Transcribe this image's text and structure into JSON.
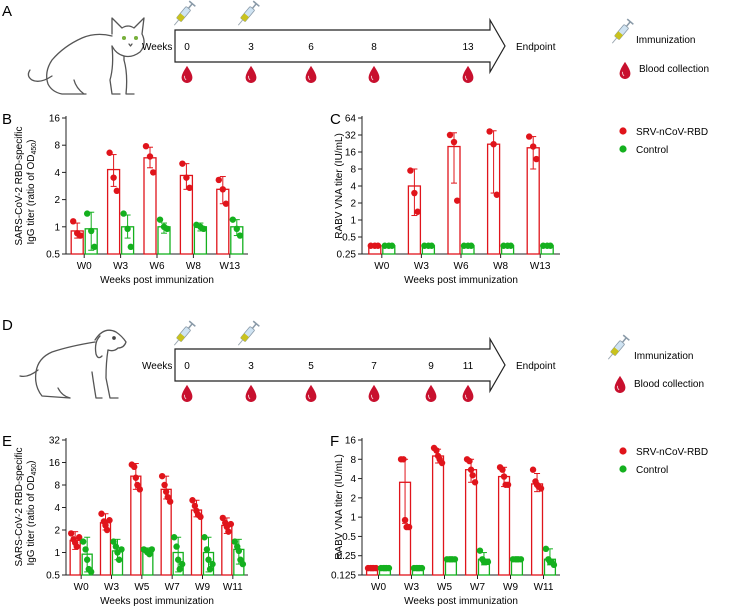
{
  "colors": {
    "red": "#e0141b",
    "green": "#14b01e",
    "blood": "#c8102e",
    "axis": "#222222"
  },
  "panel_a": {
    "letter": "A",
    "weeks_label": "Weeks",
    "ticks": [
      "0",
      "3",
      "6",
      "8",
      "13"
    ],
    "endpoint": "Endpoint",
    "immunization": "Immunization",
    "blood_collection": "Blood collection",
    "animal": "cat",
    "immunized_at": [
      "0",
      "3"
    ]
  },
  "panel_d": {
    "letter": "D",
    "weeks_label": "Weeks",
    "ticks": [
      "0",
      "3",
      "5",
      "7",
      "9",
      "11"
    ],
    "endpoint": "Endpoint",
    "immunization": "Immunization",
    "blood_collection": "Blood collection",
    "animal": "dog",
    "immunized_at": [
      "0",
      "3"
    ]
  },
  "legend": {
    "items": [
      "SRV-nCoV-RBD",
      "Control"
    ]
  },
  "chart_data": [
    {
      "id": "B",
      "letter": "B",
      "type": "bar",
      "scale": "log2",
      "categories": [
        "W0",
        "W3",
        "W6",
        "W8",
        "W13"
      ],
      "ylabel_line1": "SARS-CoV-2 RBD-specific",
      "ylabel_line2": "IgG titer (ratio of OD",
      "ylabel_sub": "450",
      "ylabel_end": ")",
      "xlabel": "Weeks post immunization",
      "ylim": [
        0.5,
        16
      ],
      "yticks": [
        0.5,
        1,
        2,
        4,
        8,
        16
      ],
      "ytick_labels": [
        "0.5",
        "1",
        "2",
        "4",
        "8",
        "16"
      ],
      "series": [
        {
          "name": "SRV-nCoV-RBD",
          "color": "red",
          "values": [
            0.9,
            4.3,
            5.8,
            3.7,
            2.6
          ],
          "err": [
            [
              0.75,
              1.1
            ],
            [
              2.8,
              6.3
            ],
            [
              4.5,
              7.6
            ],
            [
              2.6,
              5.0
            ],
            [
              1.8,
              3.6
            ]
          ],
          "points": [
            [
              1.15,
              0.85,
              0.8
            ],
            [
              6.6,
              3.5,
              2.5
            ],
            [
              7.8,
              6.0,
              4.0
            ],
            [
              5.0,
              3.5,
              2.7
            ],
            [
              3.3,
              2.6,
              1.8
            ]
          ]
        },
        {
          "name": "Control",
          "color": "green",
          "values": [
            0.95,
            1.0,
            1.0,
            1.0,
            1.0
          ],
          "err": [
            [
              0.55,
              1.45
            ],
            [
              0.75,
              1.35
            ],
            [
              0.85,
              1.1
            ],
            [
              0.9,
              1.1
            ],
            [
              0.8,
              1.2
            ]
          ],
          "points": [
            [
              1.4,
              0.9,
              0.6
            ],
            [
              1.4,
              0.95,
              0.6
            ],
            [
              1.2,
              1.0,
              0.95
            ],
            [
              1.05,
              1.0,
              0.95
            ],
            [
              1.2,
              0.95,
              0.8
            ]
          ]
        }
      ]
    },
    {
      "id": "C",
      "letter": "C",
      "type": "bar",
      "scale": "log2",
      "categories": [
        "W0",
        "W3",
        "W6",
        "W8",
        "W13"
      ],
      "ylabel_line1": "RABV VNA titer (IU/mL)",
      "xlabel": "Weeks post immunization",
      "ylim": [
        0.25,
        64
      ],
      "yticks": [
        0.25,
        0.5,
        1,
        2,
        4,
        8,
        16,
        32,
        64
      ],
      "ytick_labels": [
        "0.25",
        "0.5",
        "1",
        "2",
        "4",
        "8",
        "16",
        "32",
        "64"
      ],
      "series": [
        {
          "name": "SRV-nCoV-RBD",
          "color": "red",
          "values": [
            0.35,
            4.0,
            20,
            22,
            19
          ],
          "err": [
            [
              0.35,
              0.35
            ],
            [
              1.2,
              8.0
            ],
            [
              4.5,
              35
            ],
            [
              3.0,
              38
            ],
            [
              8.0,
              30
            ]
          ],
          "points": [
            [
              0.35,
              0.35,
              0.35
            ],
            [
              7.5,
              3.0,
              1.4
            ],
            [
              32,
              24,
              2.2
            ],
            [
              37,
              22,
              2.8
            ],
            [
              30,
              20,
              12
            ]
          ]
        },
        {
          "name": "Control",
          "color": "green",
          "values": [
            0.35,
            0.35,
            0.35,
            0.35,
            0.35
          ],
          "err": [
            [
              0.35,
              0.35
            ],
            [
              0.35,
              0.35
            ],
            [
              0.35,
              0.35
            ],
            [
              0.35,
              0.35
            ],
            [
              0.35,
              0.35
            ]
          ],
          "points": [
            [
              0.35,
              0.35,
              0.35
            ],
            [
              0.35,
              0.35,
              0.35
            ],
            [
              0.35,
              0.35,
              0.35
            ],
            [
              0.35,
              0.35,
              0.35
            ],
            [
              0.35,
              0.35,
              0.35
            ]
          ]
        }
      ]
    },
    {
      "id": "E",
      "letter": "E",
      "type": "bar",
      "scale": "log2",
      "categories": [
        "W0",
        "W3",
        "W5",
        "W7",
        "W9",
        "W11"
      ],
      "ylabel_line1": "SARS-CoV-2 RBD-specific",
      "ylabel_line2": "IgG titer (ratio of OD",
      "ylabel_sub": "450",
      "ylabel_end": ")",
      "xlabel": "Weeks post immunization",
      "ylim": [
        0.5,
        32
      ],
      "yticks": [
        0.5,
        1,
        2,
        4,
        8,
        16,
        32
      ],
      "ytick_labels": [
        "0.5",
        "1",
        "2",
        "4",
        "8",
        "16",
        "32"
      ],
      "series": [
        {
          "name": "SRV-nCoV-RBD",
          "color": "red",
          "values": [
            1.45,
            2.5,
            10.5,
            7.0,
            3.7,
            2.3
          ],
          "err": [
            [
              1.1,
              1.9
            ],
            [
              2.0,
              3.3
            ],
            [
              7.0,
              15.5
            ],
            [
              5.2,
              10.5
            ],
            [
              3.0,
              5.0
            ],
            [
              1.8,
              2.9
            ]
          ],
          "points": [
            [
              1.8,
              1.5,
              1.35,
              1.2,
              1.6
            ],
            [
              3.3,
              2.6,
              2.3,
              2.0,
              2.7
            ],
            [
              15,
              14,
              10,
              8,
              7
            ],
            [
              10.5,
              8,
              6.5,
              5.5,
              4.8
            ],
            [
              5,
              4.2,
              3.6,
              3.2,
              3.0
            ],
            [
              2.9,
              2.5,
              2.2,
              1.9,
              2.4
            ]
          ]
        },
        {
          "name": "Control",
          "color": "green",
          "values": [
            0.95,
            1.05,
            1.05,
            1.0,
            1.0,
            1.1
          ],
          "err": [
            [
              0.55,
              1.6
            ],
            [
              0.8,
              1.5
            ],
            [
              0.95,
              1.15
            ],
            [
              0.55,
              1.6
            ],
            [
              0.55,
              1.6
            ],
            [
              0.7,
              1.5
            ]
          ],
          "points": [
            [
              1.4,
              1.1,
              0.8,
              0.6,
              0.55
            ],
            [
              1.4,
              1.2,
              1.0,
              0.8,
              1.1
            ],
            [
              1.1,
              1.05,
              1.0,
              0.95,
              1.1
            ],
            [
              1.6,
              1.2,
              0.8,
              0.6,
              0.7
            ],
            [
              1.6,
              1.1,
              0.8,
              0.6,
              0.7
            ],
            [
              1.4,
              1.2,
              1.05,
              0.8,
              0.7
            ]
          ]
        }
      ]
    },
    {
      "id": "F",
      "letter": "F",
      "type": "bar",
      "scale": "log2",
      "categories": [
        "W0",
        "W3",
        "W5",
        "W7",
        "W9",
        "W11"
      ],
      "ylabel_line1": "RABV VNA titer (IU/mL)",
      "xlabel": "Weeks post immunization",
      "ylim": [
        0.125,
        16
      ],
      "yticks": [
        0.125,
        0.25,
        0.5,
        1,
        2,
        4,
        8,
        16
      ],
      "ytick_labels": [
        "0.125",
        "0.25",
        "0.5",
        "1",
        "2",
        "4",
        "8",
        "16"
      ],
      "series": [
        {
          "name": "SRV-nCoV-RBD",
          "color": "red",
          "values": [
            0.16,
            3.5,
            9.0,
            5.5,
            4.3,
            3.3
          ],
          "err": [
            [
              0.16,
              0.16
            ],
            [
              0.8,
              8.0
            ],
            [
              7.0,
              11.5
            ],
            [
              3.5,
              8.0
            ],
            [
              3.0,
              6.0
            ],
            [
              2.5,
              4.8
            ]
          ],
          "points": [
            [
              0.16,
              0.16,
              0.16,
              0.16,
              0.16
            ],
            [
              8,
              8,
              0.9,
              0.7,
              0.7
            ],
            [
              12,
              11,
              9,
              8,
              7
            ],
            [
              8,
              7.5,
              5.5,
              4.5,
              3.5
            ],
            [
              6,
              5.5,
              4.3,
              3.2,
              3.2
            ],
            [
              5.5,
              3.6,
              3.2,
              3.0,
              2.8
            ]
          ]
        },
        {
          "name": "Control",
          "color": "green",
          "values": [
            0.16,
            0.16,
            0.22,
            0.22,
            0.22,
            0.22
          ],
          "err": [
            [
              0.16,
              0.16
            ],
            [
              0.16,
              0.16
            ],
            [
              0.22,
              0.22
            ],
            [
              0.18,
              0.28
            ],
            [
              0.22,
              0.22
            ],
            [
              0.18,
              0.32
            ]
          ],
          "points": [
            [
              0.16,
              0.16,
              0.16,
              0.16,
              0.16
            ],
            [
              0.16,
              0.16,
              0.16,
              0.16,
              0.16
            ],
            [
              0.22,
              0.22,
              0.22,
              0.22,
              0.22
            ],
            [
              0.3,
              0.22,
              0.2,
              0.2,
              0.2
            ],
            [
              0.22,
              0.22,
              0.22,
              0.22,
              0.22
            ],
            [
              0.32,
              0.22,
              0.2,
              0.2,
              0.18
            ]
          ]
        }
      ]
    }
  ]
}
